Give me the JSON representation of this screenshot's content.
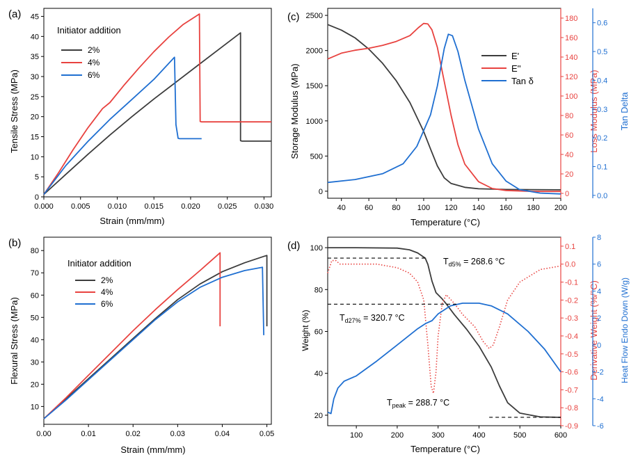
{
  "colors": {
    "black": "#3c3c3c",
    "red": "#e8423f",
    "blue": "#1f6fd1",
    "axis": "#000000"
  },
  "chart_data": [
    {
      "panel": "(a)",
      "type": "line",
      "xlabel": "Strain (mm/mm)",
      "ylabel": "Tensile Stress (MPa)",
      "xlim": [
        0,
        0.031
      ],
      "ylim": [
        0,
        47
      ],
      "xticks": [
        0.0,
        0.005,
        0.01,
        0.015,
        0.02,
        0.025,
        0.03
      ],
      "xtick_labels": [
        "0.000",
        "0.005",
        "0.010",
        "0.015",
        "0.020",
        "0.025",
        "0.030"
      ],
      "yticks": [
        0,
        5,
        10,
        15,
        20,
        25,
        30,
        35,
        40,
        45
      ],
      "legend_title": "Initiator addition",
      "legend_position": "top-left",
      "series": [
        {
          "name": "2%",
          "color": "#3c3c3c",
          "points": [
            [
              0,
              0.6
            ],
            [
              0.003,
              5.6
            ],
            [
              0.006,
              10.6
            ],
            [
              0.009,
              15.4
            ],
            [
              0.012,
              20.0
            ],
            [
              0.015,
              24.4
            ],
            [
              0.018,
              28.6
            ],
            [
              0.021,
              32.8
            ],
            [
              0.024,
              37.0
            ],
            [
              0.0268,
              40.9
            ],
            [
              0.0268,
              14.0
            ],
            [
              0.027,
              13.9
            ],
            [
              0.031,
              13.9
            ]
          ]
        },
        {
          "name": "4%",
          "color": "#e8423f",
          "points": [
            [
              0,
              0.6
            ],
            [
              0.002,
              6.0
            ],
            [
              0.004,
              11.8
            ],
            [
              0.006,
              17.2
            ],
            [
              0.008,
              22.0
            ],
            [
              0.009,
              23.5
            ],
            [
              0.011,
              28.0
            ],
            [
              0.013,
              32.2
            ],
            [
              0.015,
              36.2
            ],
            [
              0.017,
              39.8
            ],
            [
              0.019,
              43.0
            ],
            [
              0.0212,
              45.6
            ],
            [
              0.0213,
              18.8
            ],
            [
              0.0215,
              18.7
            ],
            [
              0.031,
              18.7
            ]
          ]
        },
        {
          "name": "6%",
          "color": "#1f6fd1",
          "points": [
            [
              0,
              0.6
            ],
            [
              0.003,
              7.8
            ],
            [
              0.006,
              13.8
            ],
            [
              0.009,
              19.3
            ],
            [
              0.012,
              24.3
            ],
            [
              0.015,
              29.3
            ],
            [
              0.0178,
              34.8
            ],
            [
              0.018,
              18.0
            ],
            [
              0.0183,
              14.6
            ],
            [
              0.0185,
              14.5
            ],
            [
              0.0215,
              14.5
            ]
          ]
        }
      ]
    },
    {
      "panel": "(b)",
      "type": "line",
      "xlabel": "Strain (mm/mm)",
      "ylabel": "Flexural Stress (MPa)",
      "xlim": [
        0,
        0.051
      ],
      "ylim": [
        2,
        86
      ],
      "xticks": [
        0.0,
        0.01,
        0.02,
        0.03,
        0.04,
        0.05
      ],
      "xtick_labels": [
        "0.00",
        "0.01",
        "0.02",
        "0.03",
        "0.04",
        "0.05"
      ],
      "yticks": [
        10,
        20,
        30,
        40,
        50,
        60,
        70,
        80
      ],
      "legend_title": "Initiator addition",
      "legend_position": "top-left",
      "series": [
        {
          "name": "2%",
          "color": "#3c3c3c",
          "points": [
            [
              0,
              4.5
            ],
            [
              0.005,
              13.5
            ],
            [
              0.01,
              22.5
            ],
            [
              0.015,
              31.5
            ],
            [
              0.02,
              40.5
            ],
            [
              0.025,
              49.5
            ],
            [
              0.03,
              58.0
            ],
            [
              0.035,
              65.0
            ],
            [
              0.04,
              70.5
            ],
            [
              0.045,
              74.5
            ],
            [
              0.0495,
              77.5
            ],
            [
              0.05,
              77.8
            ],
            [
              0.05,
              46.0
            ]
          ]
        },
        {
          "name": "4%",
          "color": "#e8423f",
          "points": [
            [
              0,
              4.5
            ],
            [
              0.005,
              14.0
            ],
            [
              0.01,
              24.0
            ],
            [
              0.015,
              34.0
            ],
            [
              0.02,
              44.0
            ],
            [
              0.025,
              53.5
            ],
            [
              0.03,
              62.5
            ],
            [
              0.035,
              71.0
            ],
            [
              0.0395,
              79.0
            ],
            [
              0.0395,
              46.0
            ]
          ]
        },
        {
          "name": "6%",
          "color": "#1f6fd1",
          "points": [
            [
              0,
              4.5
            ],
            [
              0.005,
              13.0
            ],
            [
              0.01,
              22.0
            ],
            [
              0.015,
              31.0
            ],
            [
              0.02,
              40.0
            ],
            [
              0.025,
              49.0
            ],
            [
              0.03,
              57.0
            ],
            [
              0.035,
              63.5
            ],
            [
              0.04,
              68.0
            ],
            [
              0.045,
              71.0
            ],
            [
              0.049,
              72.5
            ],
            [
              0.0493,
              42.0
            ]
          ]
        }
      ]
    },
    {
      "panel": "(c)",
      "type": "line",
      "xlabel": "Temperature (°C)",
      "ylabel": "Storage Modulus (MPa)",
      "y2label": "Loss Modulus (MPa)",
      "y3label": "Tan Delta",
      "xlim": [
        30,
        200
      ],
      "ylim": [
        -100,
        2600
      ],
      "y2lim": [
        -5,
        190
      ],
      "y3lim": [
        -0.01,
        0.65
      ],
      "xticks": [
        40,
        60,
        80,
        100,
        120,
        140,
        160,
        180,
        200
      ],
      "yticks": [
        0,
        500,
        1000,
        1500,
        2000,
        2500
      ],
      "y2ticks": [
        0,
        20,
        40,
        60,
        80,
        100,
        120,
        140,
        160,
        180
      ],
      "y3ticks": [
        0.0,
        0.1,
        0.2,
        0.3,
        0.4,
        0.5,
        0.6
      ],
      "y3tick_labels": [
        "0.0",
        "0.1",
        "0.2",
        "0.3",
        "0.4",
        "0.5",
        "0.6"
      ],
      "legend_position": "top-right",
      "series": [
        {
          "name": "E'",
          "axis": "left",
          "color": "#3c3c3c",
          "points": [
            [
              30,
              2370
            ],
            [
              40,
              2290
            ],
            [
              50,
              2180
            ],
            [
              60,
              2020
            ],
            [
              70,
              1820
            ],
            [
              80,
              1570
            ],
            [
              90,
              1260
            ],
            [
              100,
              850
            ],
            [
              105,
              600
            ],
            [
              110,
              360
            ],
            [
              115,
              190
            ],
            [
              120,
              110
            ],
            [
              130,
              55
            ],
            [
              140,
              35
            ],
            [
              160,
              25
            ],
            [
              200,
              20
            ]
          ]
        },
        {
          "name": "E''",
          "axis": "right",
          "color": "#e8423f",
          "points": [
            [
              30,
              138
            ],
            [
              40,
              144
            ],
            [
              50,
              147
            ],
            [
              60,
              149
            ],
            [
              70,
              152
            ],
            [
              80,
              156
            ],
            [
              90,
              162
            ],
            [
              96,
              170
            ],
            [
              100,
              174.5
            ],
            [
              103,
              174
            ],
            [
              106,
              168
            ],
            [
              110,
              150
            ],
            [
              115,
              115
            ],
            [
              120,
              80
            ],
            [
              125,
              50
            ],
            [
              130,
              30
            ],
            [
              140,
              12
            ],
            [
              150,
              5
            ],
            [
              160,
              3
            ],
            [
              180,
              2
            ],
            [
              200,
              2
            ]
          ]
        },
        {
          "name": "Tan δ",
          "axis": "right2",
          "color": "#1f6fd1",
          "points": [
            [
              30,
              0.045
            ],
            [
              50,
              0.055
            ],
            [
              70,
              0.075
            ],
            [
              85,
              0.11
            ],
            [
              95,
              0.17
            ],
            [
              105,
              0.28
            ],
            [
              110,
              0.38
            ],
            [
              115,
              0.51
            ],
            [
              118,
              0.56
            ],
            [
              121,
              0.555
            ],
            [
              125,
              0.5
            ],
            [
              130,
              0.4
            ],
            [
              140,
              0.23
            ],
            [
              150,
              0.11
            ],
            [
              160,
              0.05
            ],
            [
              170,
              0.02
            ],
            [
              185,
              0.008
            ],
            [
              200,
              0.005
            ]
          ]
        }
      ]
    },
    {
      "panel": "(d)",
      "type": "line",
      "xlabel": "Temperature (°C)",
      "ylabel": "Weight (%)",
      "y2label": "Derivative Weight (%/°C)",
      "y3label": "Heat Flow Endo Down (W/g)",
      "xlim": [
        30,
        600
      ],
      "ylim": [
        15,
        105
      ],
      "y2lim": [
        -0.9,
        0.15
      ],
      "y3lim": [
        -6,
        8
      ],
      "xticks": [
        100,
        200,
        300,
        400,
        500,
        600
      ],
      "yticks": [
        20,
        40,
        60,
        80,
        100
      ],
      "y2ticks": [
        -0.9,
        -0.8,
        -0.7,
        -0.6,
        -0.5,
        -0.4,
        -0.3,
        -0.2,
        -0.1,
        0.0,
        0.1
      ],
      "y2tick_labels": [
        "-0.9",
        "-0.8",
        "-0.7",
        "-0.6",
        "-0.5",
        "-0.4",
        "-0.3",
        "-0.2",
        "-0.1",
        "0.0",
        "0.1"
      ],
      "y3ticks": [
        -6,
        -4,
        -2,
        0,
        2,
        4,
        6,
        8
      ],
      "annotations": [
        {
          "label": "d5%",
          "text_main": "T",
          "text_sub": "d5%",
          "text_tail": " = 268.6 °C"
        },
        {
          "label": "d27%",
          "text_main": "T",
          "text_sub": "d27%",
          "text_tail": " = 320.7 °C"
        },
        {
          "label": "peak",
          "text_main": "T",
          "text_sub": "peak",
          "text_tail": " = 288.7 °C"
        }
      ],
      "series": [
        {
          "name": "Weight",
          "axis": "left",
          "color": "#3c3c3c",
          "points": [
            [
              30,
              100
            ],
            [
              100,
              100
            ],
            [
              200,
              99.8
            ],
            [
              230,
              99
            ],
            [
              250,
              97.5
            ],
            [
              268.6,
              95
            ],
            [
              275,
              92
            ],
            [
              285,
              84
            ],
            [
              295,
              78.5
            ],
            [
              310,
              75.5
            ],
            [
              320.7,
              73
            ],
            [
              340,
              68
            ],
            [
              370,
              61
            ],
            [
              400,
              53
            ],
            [
              430,
              43
            ],
            [
              450,
              34
            ],
            [
              470,
              26
            ],
            [
              500,
              21
            ],
            [
              550,
              19.2
            ],
            [
              600,
              19
            ]
          ]
        },
        {
          "name": "Derivative",
          "axis": "right",
          "color": "#e8423f",
          "dotted": true,
          "points": [
            [
              30,
              -0.05
            ],
            [
              40,
              0.02
            ],
            [
              50,
              0.02
            ],
            [
              60,
              0.0
            ],
            [
              100,
              0.0
            ],
            [
              150,
              0.0
            ],
            [
              200,
              -0.02
            ],
            [
              230,
              -0.05
            ],
            [
              250,
              -0.1
            ],
            [
              265,
              -0.2
            ],
            [
              275,
              -0.45
            ],
            [
              283,
              -0.68
            ],
            [
              288.7,
              -0.72
            ],
            [
              295,
              -0.6
            ],
            [
              300,
              -0.4
            ],
            [
              310,
              -0.22
            ],
            [
              320,
              -0.17
            ],
            [
              340,
              -0.22
            ],
            [
              360,
              -0.28
            ],
            [
              390,
              -0.35
            ],
            [
              410,
              -0.43
            ],
            [
              425,
              -0.47
            ],
            [
              435,
              -0.45
            ],
            [
              450,
              -0.35
            ],
            [
              470,
              -0.2
            ],
            [
              500,
              -0.1
            ],
            [
              550,
              -0.03
            ],
            [
              600,
              -0.01
            ]
          ]
        },
        {
          "name": "Heat Flow",
          "axis": "right2",
          "color": "#1f6fd1",
          "points": [
            [
              30,
              -5.0
            ],
            [
              38,
              -5.1
            ],
            [
              45,
              -4.0
            ],
            [
              55,
              -3.2
            ],
            [
              70,
              -2.7
            ],
            [
              100,
              -2.3
            ],
            [
              150,
              -1.2
            ],
            [
              200,
              0.0
            ],
            [
              250,
              1.2
            ],
            [
              270,
              1.6
            ],
            [
              285,
              1.8
            ],
            [
              300,
              2.3
            ],
            [
              330,
              2.9
            ],
            [
              360,
              3.1
            ],
            [
              400,
              3.1
            ],
            [
              430,
              2.9
            ],
            [
              470,
              2.3
            ],
            [
              520,
              1.0
            ],
            [
              560,
              -0.3
            ],
            [
              600,
              -2.0
            ]
          ]
        }
      ]
    }
  ]
}
